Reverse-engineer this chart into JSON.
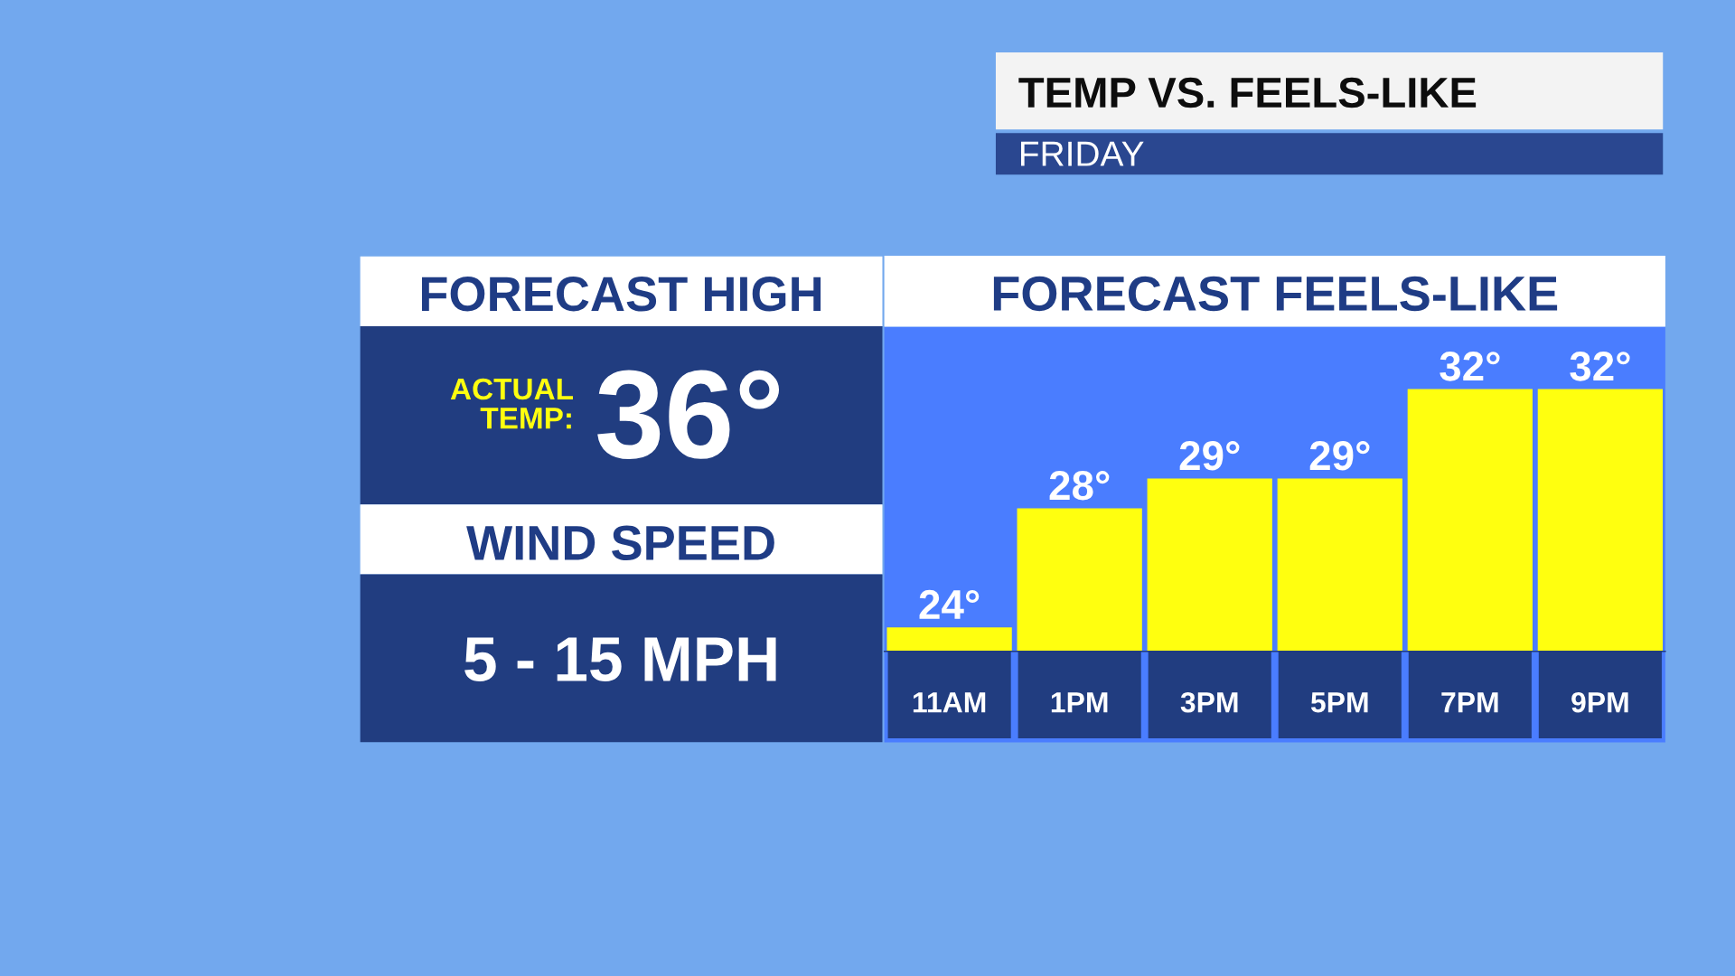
{
  "chart_data": [
    {
      "type": "other",
      "title": "TEMP VS. FEELS-LIKE",
      "subtitle": "FRIDAY"
    },
    {
      "type": "other",
      "title": "FORECAST HIGH",
      "annotations": [
        "ACTUAL\nTEMP:",
        "36°",
        "WIND SPEED",
        "5 - 15 MPH"
      ]
    },
    {
      "type": "bar",
      "title": "FORECAST FEELS-LIKE",
      "categories": [
        "11AM",
        "1PM",
        "3PM",
        "5PM",
        "7PM",
        "9PM"
      ],
      "values": [
        24,
        28,
        29,
        29,
        32,
        32
      ],
      "value_labels": [
        "24°",
        "28°",
        "29°",
        "29°",
        "32°",
        "32°"
      ],
      "color": "#ffff0f",
      "ylim": [
        23.2,
        34.1
      ],
      "tick_labels": "x"
    }
  ]
}
